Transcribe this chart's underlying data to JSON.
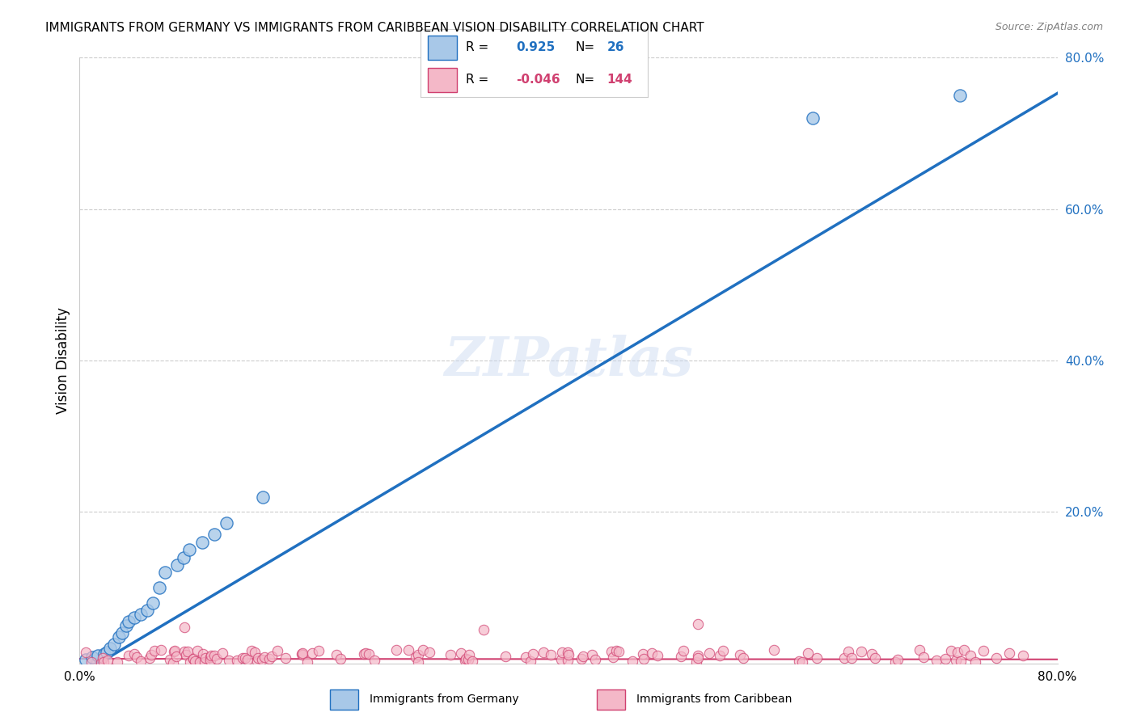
{
  "title": "IMMIGRANTS FROM GERMANY VS IMMIGRANTS FROM CARIBBEAN VISION DISABILITY CORRELATION CHART",
  "source": "Source: ZipAtlas.com",
  "ylabel": "Vision Disability",
  "xlim": [
    0.0,
    0.8
  ],
  "ylim": [
    0.0,
    0.8
  ],
  "watermark": "ZIPatlas",
  "legend_blue_label": "Immigrants from Germany",
  "legend_pink_label": "Immigrants from Caribbean",
  "blue_R": 0.925,
  "blue_N": 26,
  "pink_R": -0.046,
  "pink_N": 144,
  "blue_color": "#a8c8e8",
  "blue_line_color": "#2070c0",
  "pink_color": "#f4b8c8",
  "pink_line_color": "#d04070",
  "blue_scatter_x": [
    0.005,
    0.01,
    0.015,
    0.02,
    0.022,
    0.025,
    0.028,
    0.032,
    0.035,
    0.038,
    0.04,
    0.045,
    0.05,
    0.055,
    0.06,
    0.065,
    0.07,
    0.08,
    0.085,
    0.09,
    0.1,
    0.11,
    0.12,
    0.15,
    0.6,
    0.72
  ],
  "blue_scatter_y": [
    0.005,
    0.008,
    0.01,
    0.012,
    0.015,
    0.02,
    0.025,
    0.035,
    0.04,
    0.05,
    0.055,
    0.06,
    0.065,
    0.07,
    0.08,
    0.1,
    0.12,
    0.13,
    0.14,
    0.15,
    0.16,
    0.17,
    0.185,
    0.22,
    0.72,
    0.75
  ],
  "slope_blue": 0.96,
  "intercept_blue": -0.015,
  "slope_pink": -0.001,
  "intercept_pink": 0.006
}
